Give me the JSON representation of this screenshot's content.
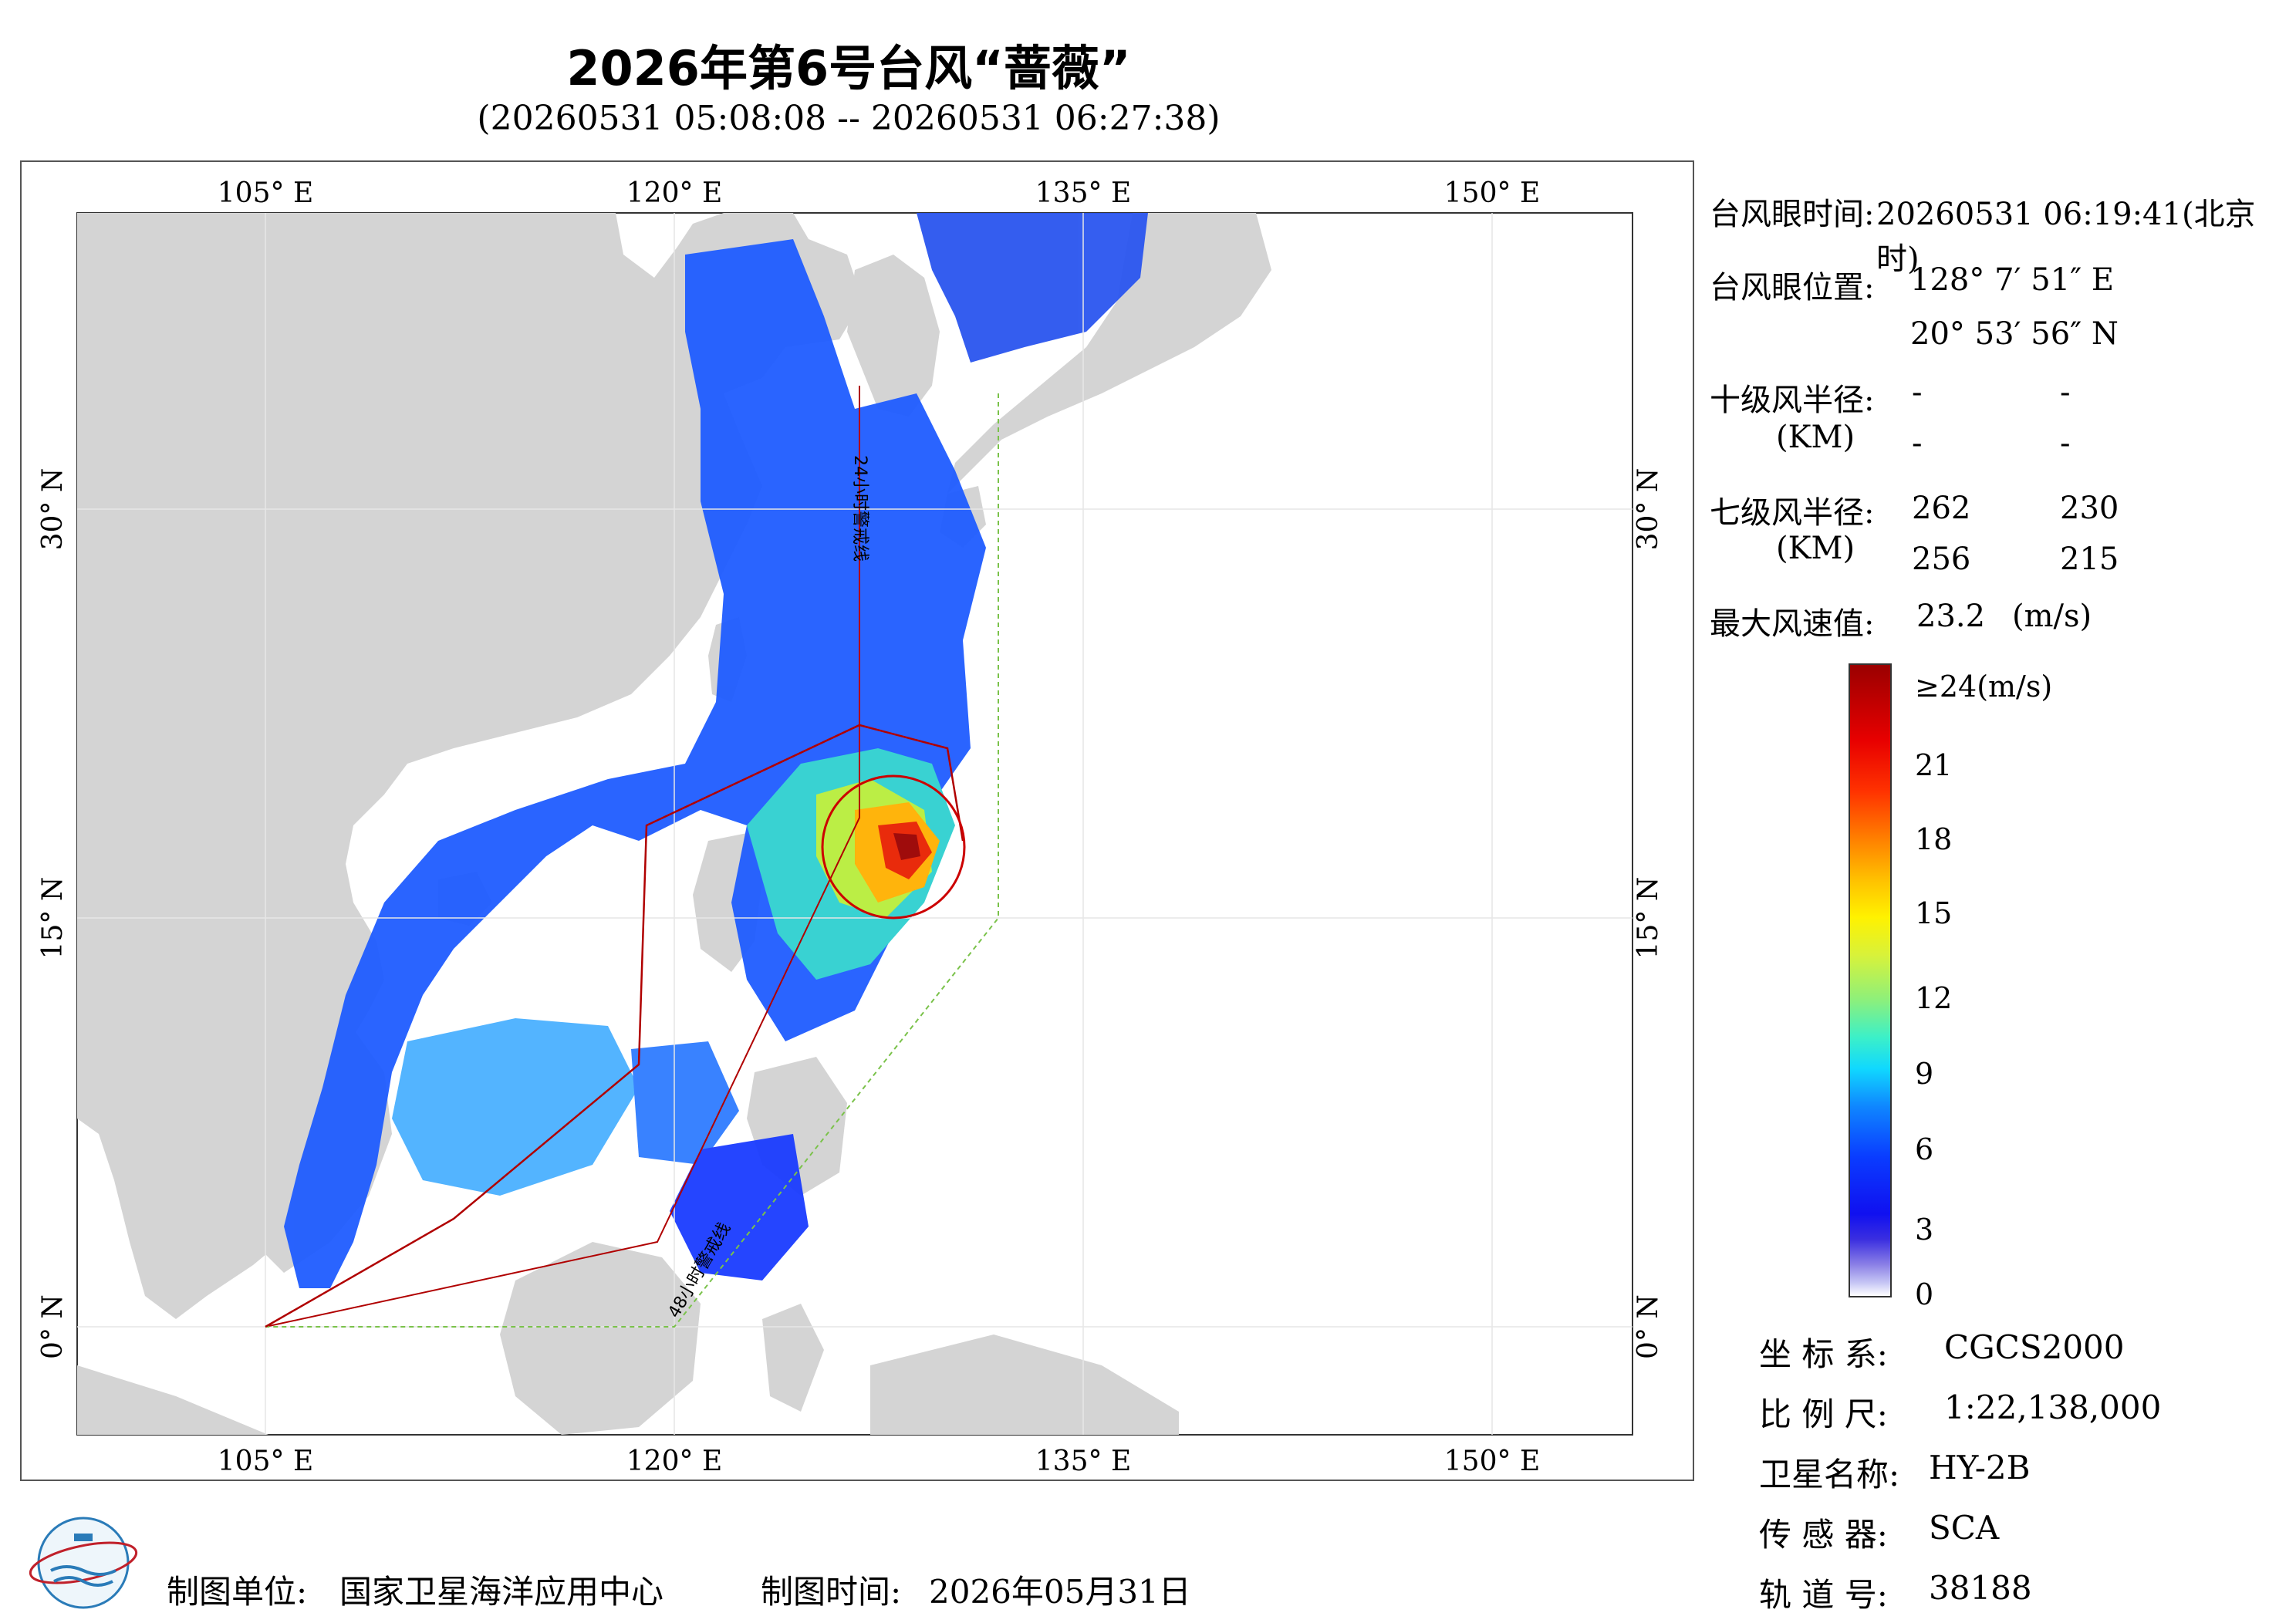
{
  "title": "2026年第6号台风“蔷薇”",
  "subtitle": "(20260531 05:08:08 -- 20260531 06:27:38)",
  "axis": {
    "lon_ticks": [
      "105° E",
      "120° E",
      "135° E",
      "150° E"
    ],
    "lat_ticks": [
      "30° N",
      "15° N",
      "0° N"
    ]
  },
  "map_annotations": {
    "warning_24h": "24小时警戒线",
    "warning_48h": "48小时警戒线"
  },
  "info": {
    "eye_time_label": "台风眼时间:",
    "eye_time_value": "20260531 06:19:41(北京时)",
    "eye_pos_label": "台风眼位置:",
    "eye_lon": "128° 7′ 51″ E",
    "eye_lat": "20° 53′ 56″ N",
    "r10_label": "十级风半径:",
    "r10_unit": "(KM)",
    "r10_values": [
      "-",
      "-",
      "-",
      "-"
    ],
    "r7_label": "七级风半径:",
    "r7_unit": "(KM)",
    "r7_values": [
      "262",
      "230",
      "256",
      "215"
    ],
    "max_wind_label": "最大风速值:",
    "max_wind_value": "23.2",
    "max_wind_unit": "(m/s)"
  },
  "legend": {
    "top_label": "≥24(m/s)",
    "ticks": [
      "21",
      "18",
      "15",
      "12",
      "9",
      "6",
      "3",
      "0"
    ]
  },
  "meta": {
    "crs_label": "坐 标 系:",
    "crs_value": "CGCS2000",
    "scale_label": "比 例 尺:",
    "scale_value": "1:22,138,000",
    "sat_label": "卫星名称:",
    "sat_value": "HY-2B",
    "sensor_label": "传 感 器:",
    "sensor_value": "SCA",
    "orbit_label": "轨 道 号:",
    "orbit_value": "38188"
  },
  "footer": {
    "unit_label": "制图单位:",
    "unit_value": "国家卫星海洋应用中心",
    "time_label": "制图时间:",
    "time_value": "2026年05月31日"
  },
  "colors": {
    "land": "#d4d4d4",
    "ocean": "#ffffff",
    "track": "#b00000",
    "warning_line": "#7ac24a"
  }
}
